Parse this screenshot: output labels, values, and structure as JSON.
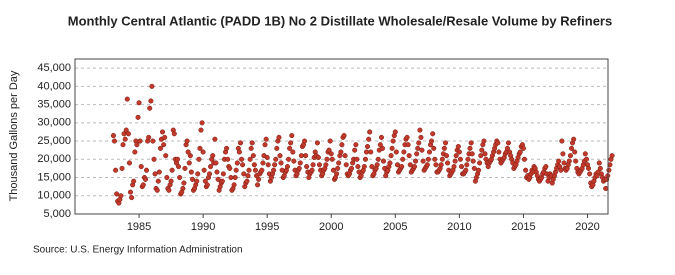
{
  "chart_data": {
    "type": "scatter",
    "title": "Monthly Central Atlantic (PADD 1B) No 2 Distillate Wholesale/Resale Volume by Refiners",
    "ylabel": "Thousand Gallons per Day",
    "source": "Source: U.S. Energy Information Administration",
    "color": "#c0392b",
    "grid": true,
    "xlim": [
      1980,
      2021.6
    ],
    "xticks": [
      1985,
      1990,
      1995,
      2000,
      2005,
      2010,
      2015,
      2020
    ],
    "ylim": [
      5000,
      47500
    ],
    "yticks": [
      {
        "value": 5000,
        "label": "5,000"
      },
      {
        "value": 10000,
        "label": "10,000"
      },
      {
        "value": 15000,
        "label": "15,000"
      },
      {
        "value": 20000,
        "label": "20,000"
      },
      {
        "value": 25000,
        "label": "25,000"
      },
      {
        "value": 30000,
        "label": "30,000"
      },
      {
        "value": 35000,
        "label": "35,000"
      },
      {
        "value": 40000,
        "label": "40,000"
      },
      {
        "value": 45000,
        "label": "45,000"
      }
    ],
    "x": [
      1983,
      1983.08,
      1983.17,
      1983.25,
      1983.33,
      1983.42,
      1983.5,
      1983.58,
      1983.67,
      1983.75,
      1983.83,
      1983.92,
      1984,
      1984.08,
      1984.17,
      1984.25,
      1984.33,
      1984.42,
      1984.5,
      1984.58,
      1984.67,
      1984.75,
      1984.83,
      1984.92,
      1985,
      1985.08,
      1985.17,
      1985.25,
      1985.33,
      1985.42,
      1985.5,
      1985.58,
      1985.67,
      1985.75,
      1985.83,
      1985.92,
      1986,
      1986.08,
      1986.17,
      1986.25,
      1986.33,
      1986.42,
      1986.5,
      1986.58,
      1986.67,
      1986.75,
      1986.83,
      1986.92,
      1987,
      1987.08,
      1987.17,
      1987.25,
      1987.33,
      1987.42,
      1987.5,
      1987.58,
      1987.67,
      1987.75,
      1987.83,
      1987.92,
      1988,
      1988.08,
      1988.17,
      1988.25,
      1988.33,
      1988.42,
      1988.5,
      1988.58,
      1988.67,
      1988.75,
      1988.83,
      1988.92,
      1989,
      1989.08,
      1989.17,
      1989.25,
      1989.33,
      1989.42,
      1989.5,
      1989.58,
      1989.67,
      1989.75,
      1989.83,
      1989.92,
      1990,
      1990.08,
      1990.17,
      1990.25,
      1990.33,
      1990.42,
      1990.5,
      1990.58,
      1990.67,
      1990.75,
      1990.83,
      1990.92,
      1991,
      1991.08,
      1991.17,
      1991.25,
      1991.33,
      1991.42,
      1991.5,
      1991.58,
      1991.67,
      1991.75,
      1991.83,
      1991.92,
      1992,
      1992.08,
      1992.17,
      1992.25,
      1992.33,
      1992.42,
      1992.5,
      1992.58,
      1992.67,
      1992.75,
      1992.83,
      1992.92,
      1993,
      1993.08,
      1993.17,
      1993.25,
      1993.33,
      1993.42,
      1993.5,
      1993.58,
      1993.67,
      1993.75,
      1993.83,
      1993.92,
      1994,
      1994.08,
      1994.17,
      1994.25,
      1994.33,
      1994.42,
      1994.5,
      1994.58,
      1994.67,
      1994.75,
      1994.83,
      1994.92,
      1995,
      1995.08,
      1995.17,
      1995.25,
      1995.33,
      1995.42,
      1995.5,
      1995.58,
      1995.67,
      1995.75,
      1995.83,
      1995.92,
      1996,
      1996.08,
      1996.17,
      1996.25,
      1996.33,
      1996.42,
      1996.5,
      1996.58,
      1996.67,
      1996.75,
      1996.83,
      1996.92,
      1997,
      1997.08,
      1997.17,
      1997.25,
      1997.33,
      1997.42,
      1997.5,
      1997.58,
      1997.67,
      1997.75,
      1997.83,
      1997.92,
      1998,
      1998.08,
      1998.17,
      1998.25,
      1998.33,
      1998.42,
      1998.5,
      1998.58,
      1998.67,
      1998.75,
      1998.83,
      1998.92,
      1999,
      1999.08,
      1999.17,
      1999.25,
      1999.33,
      1999.42,
      1999.5,
      1999.58,
      1999.67,
      1999.75,
      1999.83,
      1999.92,
      2000,
      2000.08,
      2000.17,
      2000.25,
      2000.33,
      2000.42,
      2000.5,
      2000.58,
      2000.67,
      2000.75,
      2000.83,
      2000.92,
      2001,
      2001.08,
      2001.17,
      2001.25,
      2001.33,
      2001.42,
      2001.5,
      2001.58,
      2001.67,
      2001.75,
      2001.83,
      2001.92,
      2002,
      2002.08,
      2002.17,
      2002.25,
      2002.33,
      2002.42,
      2002.5,
      2002.58,
      2002.67,
      2002.75,
      2002.83,
      2002.92,
      2003,
      2003.08,
      2003.17,
      2003.25,
      2003.33,
      2003.42,
      2003.5,
      2003.58,
      2003.67,
      2003.75,
      2003.83,
      2003.92,
      2004,
      2004.08,
      2004.17,
      2004.25,
      2004.33,
      2004.42,
      2004.5,
      2004.58,
      2004.67,
      2004.75,
      2004.83,
      2004.92,
      2005,
      2005.08,
      2005.17,
      2005.25,
      2005.33,
      2005.42,
      2005.5,
      2005.58,
      2005.67,
      2005.75,
      2005.83,
      2005.92,
      2006,
      2006.08,
      2006.17,
      2006.25,
      2006.33,
      2006.42,
      2006.5,
      2006.58,
      2006.67,
      2006.75,
      2006.83,
      2006.92,
      2007,
      2007.08,
      2007.17,
      2007.25,
      2007.33,
      2007.42,
      2007.5,
      2007.58,
      2007.67,
      2007.75,
      2007.83,
      2007.92,
      2008,
      2008.08,
      2008.17,
      2008.25,
      2008.33,
      2008.42,
      2008.5,
      2008.58,
      2008.67,
      2008.75,
      2008.83,
      2008.92,
      2009,
      2009.08,
      2009.17,
      2009.25,
      2009.33,
      2009.42,
      2009.5,
      2009.58,
      2009.67,
      2009.75,
      2009.83,
      2009.92,
      2010,
      2010.08,
      2010.17,
      2010.25,
      2010.33,
      2010.42,
      2010.5,
      2010.58,
      2010.67,
      2010.75,
      2010.83,
      2010.92,
      2011,
      2011.08,
      2011.17,
      2011.25,
      2011.33,
      2011.42,
      2011.5,
      2011.58,
      2011.67,
      2011.75,
      2011.83,
      2011.92,
      2012,
      2012.08,
      2012.17,
      2012.25,
      2012.33,
      2012.42,
      2012.5,
      2012.58,
      2012.67,
      2012.75,
      2012.83,
      2012.92,
      2013,
      2013.08,
      2013.17,
      2013.25,
      2013.33,
      2013.42,
      2013.5,
      2013.58,
      2013.67,
      2013.75,
      2013.83,
      2013.92,
      2014,
      2014.08,
      2014.17,
      2014.25,
      2014.33,
      2014.42,
      2014.5,
      2014.58,
      2014.67,
      2014.75,
      2014.83,
      2014.92,
      2015,
      2015.08,
      2015.17,
      2015.25,
      2015.33,
      2015.42,
      2015.5,
      2015.58,
      2015.67,
      2015.75,
      2015.83,
      2015.92,
      2016,
      2016.08,
      2016.17,
      2016.25,
      2016.33,
      2016.42,
      2016.5,
      2016.58,
      2016.67,
      2016.75,
      2016.83,
      2016.92,
      2017,
      2017.08,
      2017.17,
      2017.25,
      2017.33,
      2017.42,
      2017.5,
      2017.58,
      2017.67,
      2017.75,
      2017.83,
      2017.92,
      2018,
      2018.08,
      2018.17,
      2018.25,
      2018.33,
      2018.42,
      2018.5,
      2018.58,
      2018.67,
      2018.75,
      2018.83,
      2018.92,
      2019,
      2019.08,
      2019.17,
      2019.25,
      2019.33,
      2019.42,
      2019.5,
      2019.58,
      2019.67,
      2019.75,
      2019.83,
      2019.92,
      2020,
      2020.08,
      2020.17,
      2020.25,
      2020.33,
      2020.42,
      2020.5,
      2020.58,
      2020.67,
      2020.75,
      2020.83,
      2020.92,
      2021,
      2021.08,
      2021.17,
      2021.25,
      2021.33,
      2021.42,
      2021.5,
      2021.58,
      2021.67,
      2021.75,
      2021.83,
      2021.92
    ],
    "values": [
      26500,
      25000,
      17000,
      10500,
      8500,
      8000,
      9000,
      10000,
      17500,
      24000,
      27000,
      25500,
      28000,
      36500,
      27000,
      19000,
      11000,
      9500,
      13000,
      14000,
      22000,
      25000,
      24000,
      31500,
      35500,
      25000,
      18000,
      12500,
      13000,
      15000,
      14500,
      17000,
      25000,
      26000,
      34000,
      36000,
      40000,
      25000,
      20000,
      16000,
      12000,
      11500,
      14000,
      16500,
      23000,
      25500,
      27500,
      24000,
      26000,
      21000,
      15000,
      12000,
      11500,
      13000,
      14000,
      17000,
      28000,
      27000,
      20000,
      19000,
      20000,
      18000,
      15000,
      10500,
      11000,
      12000,
      13500,
      17500,
      24000,
      25000,
      22000,
      19000,
      21000,
      16500,
      14500,
      11500,
      12000,
      13000,
      14000,
      16000,
      20000,
      23000,
      28000,
      30000,
      22000,
      17000,
      14000,
      12500,
      13000,
      15000,
      16000,
      18000,
      20000,
      21000,
      19000,
      25500,
      19000,
      16500,
      14500,
      11500,
      12500,
      13500,
      14000,
      16000,
      20000,
      22000,
      23000,
      20000,
      18000,
      17500,
      15000,
      11500,
      12000,
      13000,
      15000,
      17000,
      19000,
      23000,
      22000,
      24500,
      20000,
      18500,
      16000,
      12500,
      13500,
      14000,
      15500,
      17000,
      20000,
      23000,
      24500,
      21000,
      18500,
      17000,
      15500,
      13000,
      14500,
      16000,
      16500,
      17000,
      19000,
      21000,
      24000,
      25500,
      20500,
      18500,
      16000,
      14000,
      15000,
      16000,
      17000,
      18500,
      20000,
      23000,
      25000,
      26000,
      21000,
      19000,
      17000,
      15000,
      15500,
      16500,
      17000,
      18000,
      20000,
      23000,
      24500,
      26500,
      22000,
      19500,
      17000,
      15500,
      16000,
      17000,
      17500,
      19000,
      21000,
      23500,
      24000,
      25000,
      21000,
      18000,
      16500,
      15000,
      16000,
      16500,
      17000,
      18500,
      20500,
      22000,
      21000,
      24500,
      20500,
      18500,
      17000,
      15500,
      16000,
      17000,
      17500,
      18500,
      20000,
      22000,
      22500,
      25000,
      21500,
      20000,
      17000,
      14500,
      15000,
      16000,
      17500,
      19000,
      21000,
      22000,
      24000,
      26000,
      26500,
      21000,
      18500,
      16000,
      15500,
      16000,
      17000,
      17500,
      19000,
      20000,
      22500,
      24000,
      20000,
      18000,
      16500,
      15000,
      15500,
      16500,
      17000,
      18000,
      20000,
      22000,
      23500,
      25500,
      27500,
      22000,
      18000,
      15500,
      16000,
      17000,
      17500,
      18500,
      20000,
      22500,
      24000,
      26000,
      23000,
      19500,
      17500,
      15500,
      16500,
      17000,
      18000,
      19000,
      21000,
      23000,
      25000,
      26500,
      27500,
      22000,
      18500,
      16500,
      17000,
      17500,
      18000,
      20000,
      22000,
      24000,
      25500,
      26000,
      24000,
      21000,
      18500,
      16500,
      17000,
      17500,
      18000,
      19500,
      21500,
      23000,
      24500,
      28000,
      26000,
      22500,
      19500,
      17000,
      17500,
      18000,
      18500,
      20000,
      22000,
      24000,
      25000,
      27000,
      23000,
      20000,
      18500,
      16500,
      16500,
      17000,
      17500,
      18500,
      20000,
      21500,
      23000,
      24500,
      21000,
      19000,
      17000,
      15500,
      16000,
      16500,
      17000,
      18000,
      19500,
      21000,
      22500,
      23500,
      22000,
      20000,
      18000,
      16000,
      16000,
      16500,
      17000,
      18500,
      20000,
      21500,
      23000,
      24500,
      21500,
      19500,
      17500,
      14000,
      15000,
      16000,
      17000,
      19000,
      21000,
      22500,
      24000,
      25000,
      21500,
      20000,
      19000,
      18000,
      19000,
      19500,
      20000,
      21000,
      22000,
      23000,
      24000,
      25000,
      24500,
      22000,
      20000,
      19000,
      19500,
      20000,
      20500,
      21500,
      22000,
      23000,
      24500,
      22000,
      21000,
      20000,
      19000,
      17500,
      18000,
      18500,
      19500,
      20500,
      21500,
      22000,
      23500,
      24000,
      23000,
      20000,
      17000,
      15000,
      15500,
      14500,
      15000,
      16000,
      17000,
      16500,
      18000,
      17500,
      16500,
      15500,
      14500,
      14000,
      14500,
      15000,
      16000,
      16500,
      17500,
      18000,
      16000,
      14000,
      15000,
      16000,
      15500,
      13500,
      14500,
      15500,
      16500,
      17500,
      18500,
      19500,
      18000,
      17000,
      25000,
      21500,
      19000,
      17500,
      17000,
      17500,
      18500,
      19500,
      21000,
      23000,
      24500,
      25500,
      22000,
      19500,
      17500,
      16500,
      16000,
      16500,
      17000,
      17500,
      18500,
      19500,
      21500,
      20000,
      18500,
      17500,
      16000,
      13500,
      12500,
      13000,
      14000,
      15000,
      16000,
      15500,
      16500,
      19000,
      17500,
      16000,
      15000,
      14000,
      14500,
      12000,
      14500,
      15500,
      17000,
      18500,
      20000,
      21000
    ]
  }
}
